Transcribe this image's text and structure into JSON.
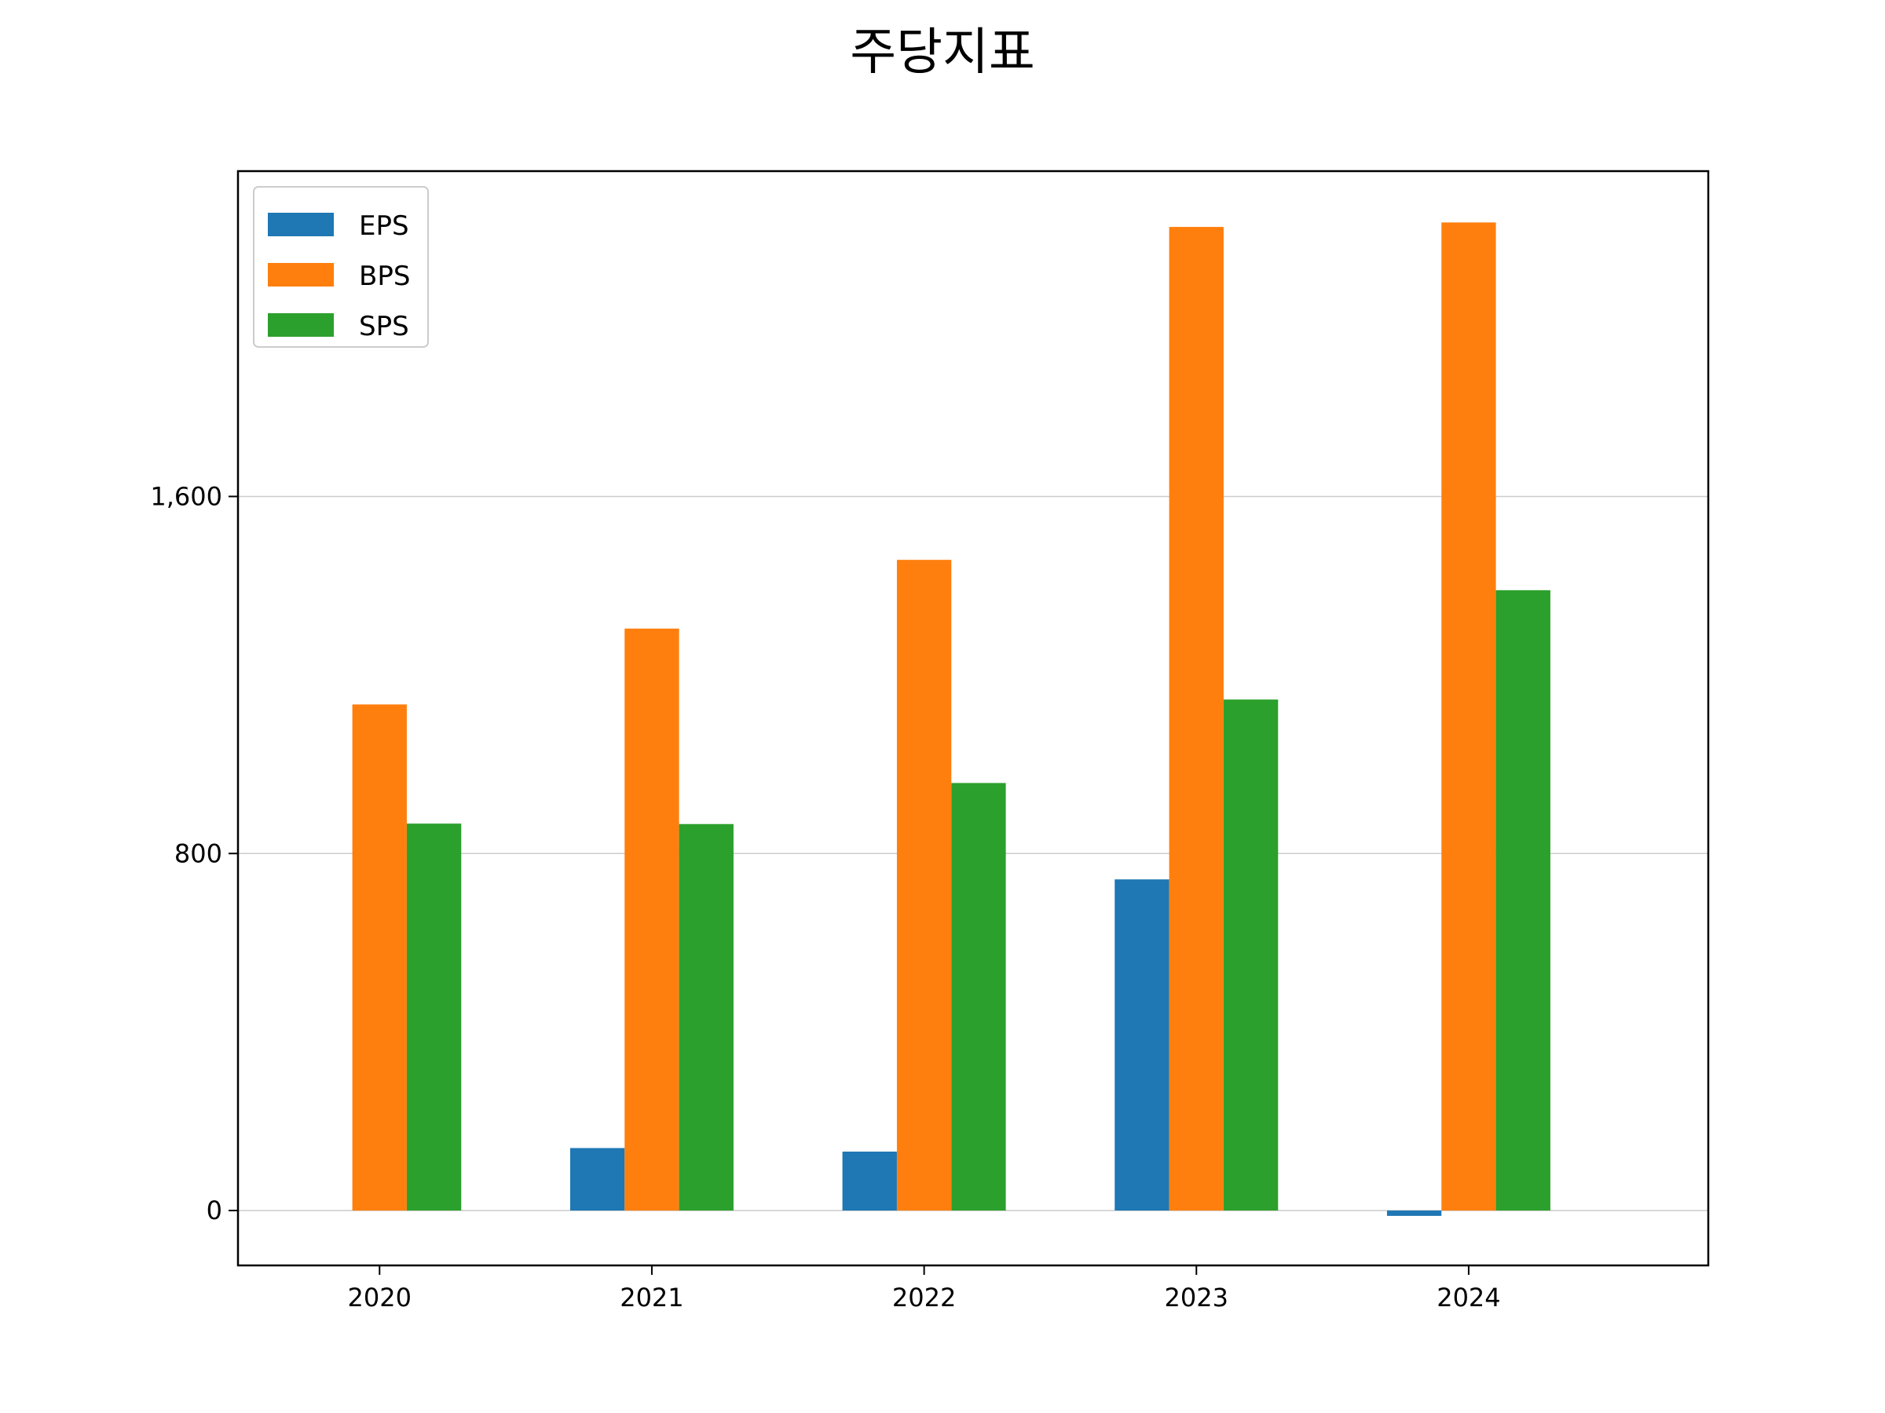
{
  "chart_data": {
    "type": "bar",
    "title": "주당지표",
    "xlabel": "",
    "ylabel": "",
    "categories": [
      "2020",
      "2021",
      "2022",
      "2023",
      "2024"
    ],
    "series": [
      {
        "name": "EPS",
        "color": "#1f77b4",
        "values": [
          0,
          140,
          132,
          742,
          -12
        ]
      },
      {
        "name": "BPS",
        "color": "#ff7f0e",
        "values": [
          1134,
          1304,
          1458,
          2204,
          2214
        ]
      },
      {
        "name": "SPS",
        "color": "#2ca02c",
        "values": [
          867,
          866,
          958,
          1145,
          1390
        ]
      }
    ],
    "ylim": [
      -123,
      2329
    ],
    "yticks": [
      0,
      800,
      1600
    ],
    "ytick_labels": [
      "0",
      "800",
      "1,600"
    ],
    "grid": "horizontal",
    "legend_position": "top-left"
  }
}
